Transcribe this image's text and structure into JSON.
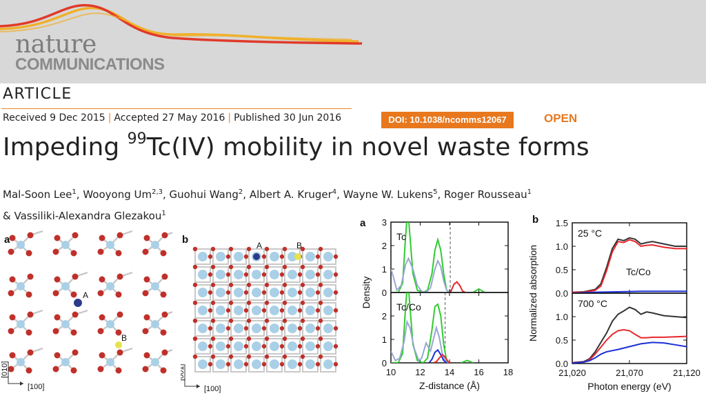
{
  "journal": {
    "name_top": "nature",
    "name_bottom": "COMMUNICATIONS",
    "colors": {
      "banner": "#d8d8d8",
      "accent": "#e8781e",
      "wave_red": "#e03a2a",
      "wave_yellow": "#f0b02a"
    }
  },
  "article_type": "ARTICLE",
  "dates": {
    "received": "Received 9 Dec 2015",
    "accepted": "Accepted 27 May 2016",
    "published": "Published 30 Jun 2016",
    "separator": "|"
  },
  "doi": "DOI: 10.1038/ncomms12067",
  "access": "OPEN",
  "title": {
    "before_sup": "Impeding ",
    "sup": "99",
    "after_sup": "Tc(IV) mobility in novel waste forms"
  },
  "authors": {
    "line1": [
      {
        "name": "Mal-Soon Lee",
        "aff": "1",
        "sep": ", "
      },
      {
        "name": "Wooyong Um",
        "aff": "2,3",
        "sep": ", "
      },
      {
        "name": "Guohui Wang",
        "aff": "2",
        "sep": ", "
      },
      {
        "name": "Albert A. Kruger",
        "aff": "4",
        "sep": ", "
      },
      {
        "name": "Wayne W. Lukens",
        "aff": "5",
        "sep": ", "
      },
      {
        "name": "Roger Rousseau",
        "aff": "1",
        "sep": ""
      }
    ],
    "line2_prefix": "& ",
    "line2": [
      {
        "name": "Vassiliki-Alexandra Glezakou",
        "aff": "1",
        "sep": ""
      }
    ]
  },
  "structure_figure": {
    "panel_a": {
      "label": "a",
      "site_A": "A",
      "site_B": "B",
      "axis_y": "[010]",
      "axis_x": "[100]"
    },
    "panel_b": {
      "label": "b",
      "site_A": "A",
      "site_B": "B",
      "axis_y": "[001]",
      "axis_x": "[100]"
    }
  },
  "chart_data": [
    {
      "type": "line",
      "panel_label": "a",
      "xlabel": "Z-distance (Å)",
      "ylabel": "Density",
      "xlim": [
        10,
        18
      ],
      "xticks": [
        "10",
        "12",
        "14",
        "16",
        "18"
      ],
      "subplots": [
        {
          "annotation": "Tc",
          "ylim": [
            0,
            3
          ],
          "yticks": [
            "0",
            "1",
            "2",
            "3"
          ],
          "dashed_line_x": 14.05,
          "series": [
            {
              "color": "#2ecc2e",
              "x": [
                10.0,
                10.5,
                10.8,
                11.0,
                11.1,
                11.2,
                11.3,
                11.5,
                11.8,
                12.2,
                12.5,
                12.8,
                13.0,
                13.2,
                13.4,
                13.6,
                13.8,
                14.0,
                14.2
              ],
              "y": [
                0,
                0,
                0.4,
                2.4,
                3.2,
                3.2,
                2.4,
                0.8,
                0.1,
                0,
                0.1,
                0.8,
                1.8,
                2.25,
                1.8,
                0.8,
                0.1,
                0,
                0
              ]
            },
            {
              "color": "#9aa6d4",
              "x": [
                10.0,
                10.2,
                10.4,
                10.7,
                11.0,
                11.2,
                11.5,
                11.8,
                12.1,
                12.4,
                12.7,
                13.0,
                13.2,
                13.4,
                13.6,
                13.8,
                14.0
              ],
              "y": [
                1.0,
                0.6,
                0.1,
                0.3,
                1.2,
                1.45,
                1.0,
                0.3,
                0.05,
                0,
                0.2,
                1.0,
                1.35,
                1.1,
                0.5,
                0.1,
                0
              ]
            },
            {
              "color": "#e8262a",
              "x": [
                14.0,
                14.1,
                14.3,
                14.5,
                14.7,
                14.9,
                15.1
              ],
              "y": [
                0,
                0.05,
                0.35,
                0.45,
                0.3,
                0.05,
                0
              ]
            },
            {
              "color": "#2ecc2e",
              "x": [
                15.6,
                15.8,
                16.0,
                16.2,
                16.4
              ],
              "y": [
                0,
                0.08,
                0.15,
                0.08,
                0
              ]
            }
          ]
        },
        {
          "annotation": "Tc/Co",
          "ylim": [
            0,
            3
          ],
          "yticks": [
            "0",
            "1",
            "2"
          ],
          "dashed_line_x": 13.7,
          "series": [
            {
              "color": "#2ecc2e",
              "x": [
                10.0,
                10.5,
                10.8,
                11.0,
                11.1,
                11.2,
                11.3,
                11.5,
                11.8,
                12.2,
                12.5,
                12.8,
                13.0,
                13.2,
                13.4,
                13.6,
                13.8,
                14.0
              ],
              "y": [
                0,
                0,
                0.4,
                2.4,
                3.2,
                3.2,
                2.4,
                0.8,
                0.1,
                0,
                0.2,
                1.4,
                2.4,
                2.5,
                2.0,
                0.8,
                0.1,
                0
              ]
            },
            {
              "color": "#9aa6d4",
              "x": [
                10.0,
                10.3,
                10.6,
                10.9,
                11.1,
                11.3,
                11.6,
                11.9,
                12.1,
                12.4,
                12.7,
                12.9,
                13.1,
                13.3,
                13.5,
                13.7,
                13.9
              ],
              "y": [
                0.5,
                0.1,
                0.2,
                0.9,
                1.75,
                1.5,
                0.6,
                0.1,
                0.2,
                0.85,
                0.5,
                1.0,
                1.5,
                1.1,
                0.4,
                0.1,
                0
              ]
            },
            {
              "color": "#1a2ed6",
              "x": [
                12.6,
                12.8,
                13.0,
                13.2,
                13.4,
                13.6,
                13.8
              ],
              "y": [
                0,
                0.15,
                0.45,
                0.55,
                0.35,
                0.1,
                0
              ]
            },
            {
              "color": "#e8262a",
              "x": [
                12.9,
                13.1,
                13.3,
                13.5,
                13.7,
                13.9,
                14.1
              ],
              "y": [
                0,
                0.05,
                0.2,
                0.35,
                0.25,
                0.05,
                0
              ]
            },
            {
              "color": "#2ecc2e",
              "x": [
                14.8,
                15.0,
                15.2,
                15.4,
                15.6
              ],
              "y": [
                0,
                0.06,
                0.1,
                0.06,
                0
              ]
            }
          ]
        }
      ]
    },
    {
      "type": "line",
      "panel_label": "b",
      "xlabel": "Photon energy (eV)",
      "ylabel": "Normalized absorption",
      "xlim": [
        21020,
        21120
      ],
      "xticks": [
        "21,020",
        "21,070",
        "21,120"
      ],
      "subplots": [
        {
          "annotation": "25 °C",
          "label2": "Tc/Co",
          "ylim": [
            0,
            1.5
          ],
          "yticks": [
            "0.0",
            "0.5",
            "1.0",
            "1.5"
          ],
          "series": [
            {
              "color": "#333333",
              "x": [
                21020,
                21030,
                21040,
                21045,
                21050,
                21055,
                21060,
                21065,
                21070,
                21075,
                21080,
                21085,
                21090,
                21100,
                21110,
                21120
              ],
              "y": [
                0.02,
                0.03,
                0.08,
                0.2,
                0.55,
                0.95,
                1.15,
                1.12,
                1.18,
                1.15,
                1.05,
                1.08,
                1.1,
                1.05,
                1.0,
                1.0
              ]
            },
            {
              "color": "#e8262a",
              "x": [
                21020,
                21030,
                21040,
                21045,
                21050,
                21055,
                21060,
                21065,
                21070,
                21075,
                21080,
                21085,
                21090,
                21100,
                21110,
                21120
              ],
              "y": [
                0.02,
                0.02,
                0.06,
                0.15,
                0.48,
                0.88,
                1.1,
                1.08,
                1.14,
                1.1,
                1.0,
                1.02,
                1.03,
                0.98,
                0.95,
                0.95
              ]
            },
            {
              "color": "#1a2ed6",
              "x": [
                21020,
                21040,
                21060,
                21080,
                21100,
                21120
              ],
              "y": [
                0,
                0.02,
                0.03,
                0.04,
                0.04,
                0.04
              ]
            }
          ]
        },
        {
          "annotation": "700 °C",
          "ylim": [
            0,
            1.5
          ],
          "yticks": [
            "0.0",
            "0.5",
            "1.0"
          ],
          "series": [
            {
              "color": "#333333",
              "x": [
                21020,
                21030,
                21035,
                21040,
                21045,
                21050,
                21055,
                21060,
                21065,
                21070,
                21075,
                21080,
                21085,
                21090,
                21100,
                21110,
                21120
              ],
              "y": [
                0.02,
                0.04,
                0.1,
                0.25,
                0.45,
                0.65,
                0.9,
                1.05,
                1.12,
                1.2,
                1.15,
                1.05,
                1.1,
                1.08,
                1.02,
                1.0,
                0.98
              ]
            },
            {
              "color": "#e8262a",
              "x": [
                21020,
                21030,
                21035,
                21040,
                21045,
                21050,
                21055,
                21060,
                21065,
                21070,
                21075,
                21080,
                21085,
                21090,
                21100,
                21110,
                21120
              ],
              "y": [
                0.02,
                0.03,
                0.08,
                0.2,
                0.35,
                0.5,
                0.62,
                0.7,
                0.72,
                0.7,
                0.62,
                0.55,
                0.55,
                0.56,
                0.56,
                0.57,
                0.58
              ]
            },
            {
              "color": "#1a2ed6",
              "x": [
                21020,
                21030,
                21035,
                21040,
                21045,
                21050,
                21060,
                21070,
                21080,
                21090,
                21100,
                21110,
                21120
              ],
              "y": [
                0.01,
                0.03,
                0.06,
                0.12,
                0.2,
                0.25,
                0.3,
                0.36,
                0.42,
                0.45,
                0.44,
                0.4,
                0.36
              ]
            }
          ]
        }
      ]
    }
  ]
}
